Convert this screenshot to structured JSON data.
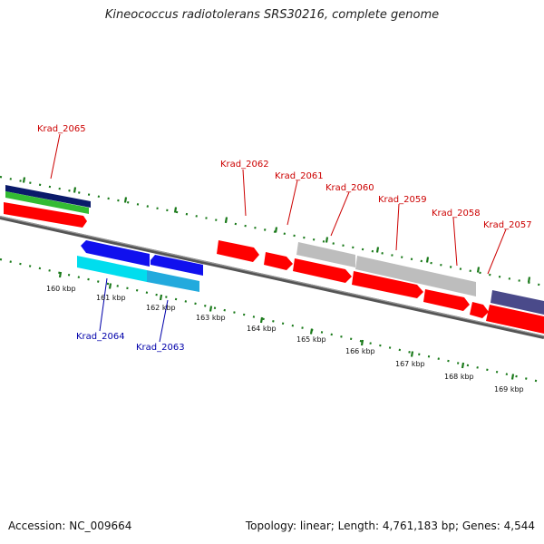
{
  "title": "Kineococcus radiotolerans SRS30216, complete genome",
  "footer": {
    "accession": "Accession: NC_009664",
    "summary": "Topology: linear; Length: 4,761,183 bp; Genes: 4,544"
  },
  "colors": {
    "red": "#ff0000",
    "blue": "#1010ee",
    "cyan": "#00ddee",
    "navy": "#0a1a6a",
    "green": "#33bb33",
    "gray": "#bdbdbd",
    "slate": "#4a4a8a",
    "tick": "#1a7a1a",
    "label_top": "#cc0000",
    "label_bottom": "#0000aa"
  },
  "tick_labels": [
    "160 kbp",
    "161 kbp",
    "162 kbp",
    "163 kbp",
    "164 kbp",
    "165 kbp",
    "166 kbp",
    "167 kbp",
    "168 kbp",
    "169 kbp"
  ],
  "gene_labels_top": [
    "Krad_2065",
    "Krad_2062",
    "Krad_2061",
    "Krad_2060",
    "Krad_2059",
    "Krad_2058",
    "Krad_2057"
  ],
  "gene_labels_bottom": [
    "Krad_2064",
    "Krad_2063"
  ]
}
